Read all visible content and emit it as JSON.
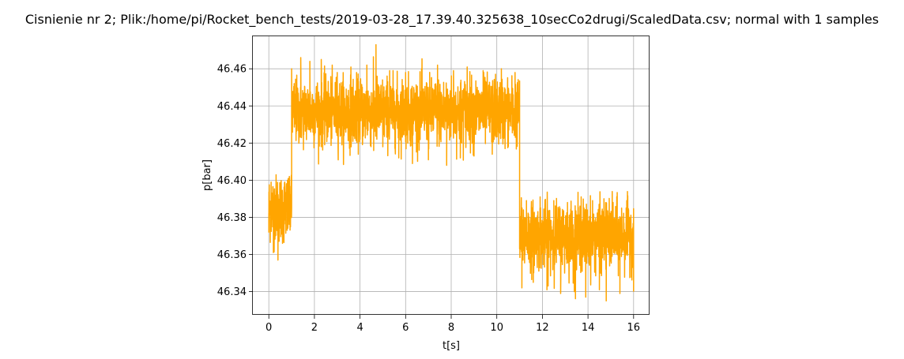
{
  "chart_data": {
    "type": "line",
    "title": "Cisnienie nr 2; Plik:/home/pi/Rocket_bench_tests/2019-03-28_17.39.40.325638_10secCo2drugi/ScaledData.csv; normal with 1 samples",
    "xlabel": "t[s]",
    "ylabel": "p[bar]",
    "xlim": [
      -0.7,
      16.7
    ],
    "ylim": [
      46.3275,
      46.4775
    ],
    "x_ticks": [
      0,
      2,
      4,
      6,
      8,
      10,
      12,
      14,
      16
    ],
    "y_ticks": [
      46.34,
      46.36,
      46.38,
      46.4,
      46.42,
      46.44,
      46.46
    ],
    "x_tick_labels": [
      "0",
      "2",
      "4",
      "6",
      "8",
      "10",
      "12",
      "14",
      "16"
    ],
    "y_tick_labels": [
      "46.34",
      "46.36",
      "46.38",
      "46.40",
      "46.42",
      "46.44",
      "46.46"
    ],
    "grid": true,
    "legend": "none",
    "series": [
      {
        "color": "#ffa500",
        "segments": [
          {
            "t_start": 0.0,
            "t_end": 1.0,
            "level": 46.385,
            "spread": 0.01,
            "min": 46.357,
            "max": 46.403
          },
          {
            "t_start": 1.0,
            "t_end": 11.0,
            "level": 46.437,
            "spread": 0.01,
            "min": 46.408,
            "max": 46.473
          },
          {
            "t_start": 11.0,
            "t_end": 16.0,
            "level": 46.37,
            "spread": 0.01,
            "min": 46.335,
            "max": 46.394
          }
        ],
        "points": [
          [
            0.0,
            46.372
          ],
          [
            0.1,
            46.399
          ],
          [
            0.2,
            46.361
          ],
          [
            0.3,
            46.392
          ],
          [
            0.4,
            46.357
          ],
          [
            0.5,
            46.397
          ],
          [
            0.6,
            46.366
          ],
          [
            0.7,
            46.399
          ],
          [
            0.8,
            46.373
          ],
          [
            0.9,
            46.402
          ],
          [
            1.0,
            46.386
          ],
          [
            1.0,
            46.46
          ],
          [
            1.2,
            46.425
          ],
          [
            1.4,
            46.466
          ],
          [
            1.6,
            46.427
          ],
          [
            1.8,
            46.464
          ],
          [
            2.0,
            46.424
          ],
          [
            2.3,
            46.465
          ],
          [
            2.6,
            46.426
          ],
          [
            3.0,
            46.458
          ],
          [
            3.3,
            46.424
          ],
          [
            3.6,
            46.461
          ],
          [
            4.0,
            46.422
          ],
          [
            4.3,
            46.462
          ],
          [
            4.6,
            46.416
          ],
          [
            4.7,
            46.473
          ],
          [
            5.0,
            46.418
          ],
          [
            5.3,
            46.459
          ],
          [
            5.7,
            46.412
          ],
          [
            6.0,
            46.458
          ],
          [
            6.3,
            46.409
          ],
          [
            6.7,
            46.46
          ],
          [
            7.0,
            46.411
          ],
          [
            7.4,
            46.462
          ],
          [
            7.8,
            46.408
          ],
          [
            8.1,
            46.459
          ],
          [
            8.4,
            46.412
          ],
          [
            8.7,
            46.461
          ],
          [
            9.0,
            46.413
          ],
          [
            9.4,
            46.459
          ],
          [
            9.8,
            46.414
          ],
          [
            10.2,
            46.46
          ],
          [
            10.5,
            46.418
          ],
          [
            10.8,
            46.458
          ],
          [
            11.0,
            46.421
          ],
          [
            11.0,
            46.39
          ],
          [
            11.1,
            46.342
          ],
          [
            11.3,
            46.389
          ],
          [
            11.6,
            46.345
          ],
          [
            11.9,
            46.391
          ],
          [
            12.2,
            46.341
          ],
          [
            12.5,
            46.389
          ],
          [
            12.8,
            46.339
          ],
          [
            13.1,
            46.388
          ],
          [
            13.4,
            46.34
          ],
          [
            13.7,
            46.391
          ],
          [
            13.9,
            46.337
          ],
          [
            14.2,
            46.389
          ],
          [
            14.5,
            46.341
          ],
          [
            14.7,
            46.39
          ],
          [
            14.8,
            46.335
          ],
          [
            15.1,
            46.388
          ],
          [
            15.4,
            46.339
          ],
          [
            15.7,
            46.389
          ],
          [
            16.0,
            46.34
          ]
        ]
      }
    ]
  }
}
